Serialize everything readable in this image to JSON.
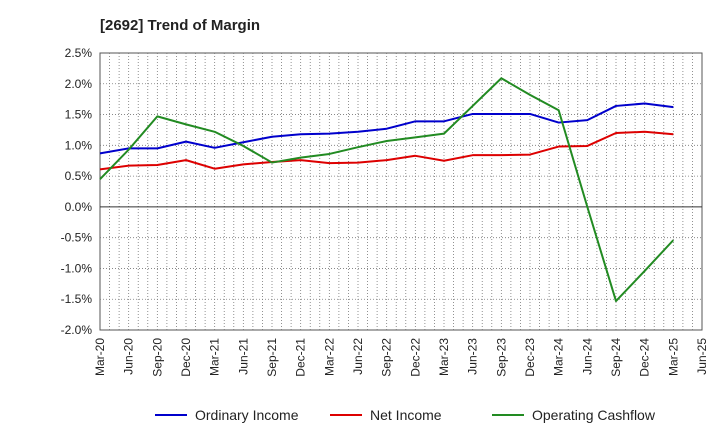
{
  "chart_data": {
    "type": "line",
    "title": "[2692]  Trend of Margin",
    "xlabel": "",
    "ylabel": "",
    "x_ticks": [
      "Mar-20",
      "Jun-20",
      "Sep-20",
      "Dec-20",
      "Mar-21",
      "Jun-21",
      "Sep-21",
      "Dec-21",
      "Mar-22",
      "Jun-22",
      "Sep-22",
      "Dec-22",
      "Mar-23",
      "Jun-23",
      "Sep-23",
      "Dec-23",
      "Mar-24",
      "Jun-24",
      "Sep-24",
      "Dec-24",
      "Mar-25",
      "Jun-25"
    ],
    "y_ticks": [
      "2.5%",
      "2.0%",
      "1.5%",
      "1.0%",
      "0.5%",
      "0.0%",
      "-0.5%",
      "-1.0%",
      "-1.5%",
      "-2.0%"
    ],
    "ylim": [
      -2.0,
      2.5
    ],
    "grid": true,
    "legend_position": "bottom",
    "series": [
      {
        "name": "Ordinary Income",
        "color": "#0000cc",
        "values": [
          0.87,
          0.95,
          0.95,
          1.06,
          0.96,
          1.05,
          1.14,
          1.18,
          1.19,
          1.22,
          1.27,
          1.39,
          1.39,
          1.51,
          1.51,
          1.51,
          1.37,
          1.41,
          1.64,
          1.68,
          1.62
        ]
      },
      {
        "name": "Net Income",
        "color": "#dd0000",
        "values": [
          0.61,
          0.67,
          0.68,
          0.76,
          0.62,
          0.69,
          0.73,
          0.76,
          0.71,
          0.72,
          0.76,
          0.83,
          0.75,
          0.84,
          0.84,
          0.85,
          0.98,
          0.99,
          1.2,
          1.22,
          1.18
        ]
      },
      {
        "name": "Operating Cashflow",
        "color": "#228b22",
        "values": [
          0.45,
          0.93,
          1.47,
          1.34,
          1.22,
          0.99,
          0.72,
          0.8,
          0.86,
          0.97,
          1.07,
          1.13,
          1.19,
          1.64,
          2.09,
          1.82,
          1.57,
          0.0,
          -1.53,
          -1.04,
          -0.54
        ]
      }
    ]
  }
}
